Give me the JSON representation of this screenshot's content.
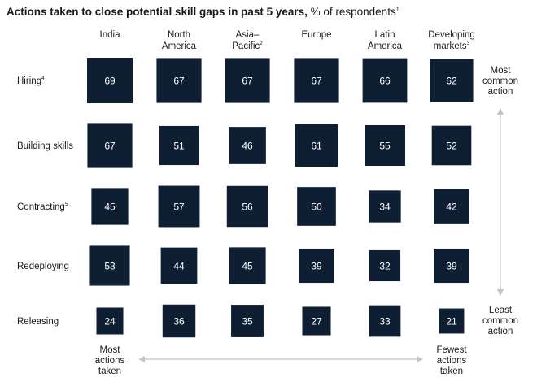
{
  "chart_data": {
    "type": "heatmap",
    "title": "Actions taken to close potential skill gaps in past 5 years,",
    "subtitle": "% of respondents",
    "title_footnote": "1",
    "columns": [
      {
        "label": [
          "India"
        ],
        "footnote": ""
      },
      {
        "label": [
          "North",
          "America"
        ],
        "footnote": ""
      },
      {
        "label": [
          "Asia–",
          "Pacific"
        ],
        "footnote": "2"
      },
      {
        "label": [
          "Europe"
        ],
        "footnote": ""
      },
      {
        "label": [
          "Latin",
          "America"
        ],
        "footnote": ""
      },
      {
        "label": [
          "Developing",
          "markets"
        ],
        "footnote": "3"
      }
    ],
    "rows": [
      {
        "label": "Hiring",
        "footnote": "4",
        "values": [
          69,
          67,
          67,
          67,
          66,
          62
        ]
      },
      {
        "label": "Building skills",
        "footnote": "",
        "values": [
          67,
          51,
          46,
          61,
          55,
          52
        ]
      },
      {
        "label": "Contracting",
        "footnote": "5",
        "values": [
          45,
          57,
          56,
          50,
          34,
          42
        ]
      },
      {
        "label": "Redeploying",
        "footnote": "",
        "values": [
          53,
          44,
          45,
          39,
          32,
          39
        ]
      },
      {
        "label": "Releasing",
        "footnote": "",
        "values": [
          24,
          36,
          35,
          27,
          33,
          21
        ]
      }
    ],
    "value_max": 69,
    "cell_color": "#0f1f33",
    "value_text_color": "#ffffff",
    "arrow_color": "#c4c4c4",
    "vertical_legend": {
      "top": [
        "Most",
        "common",
        "action"
      ],
      "bottom": [
        "Least",
        "common",
        "action"
      ]
    },
    "horizontal_legend": {
      "left": [
        "Most",
        "actions",
        "taken"
      ],
      "right": [
        "Fewest",
        "actions",
        "taken"
      ]
    }
  }
}
